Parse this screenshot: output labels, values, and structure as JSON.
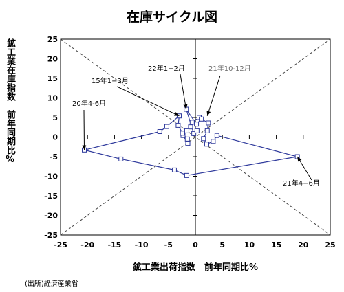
{
  "chart_data": {
    "type": "scatter",
    "title": "在庫サイクル図",
    "xlabel": "鉱工業出荷指数　前年同期比%",
    "ylabel": "鉱工業在庫指数　前年同期比%",
    "xlim": [
      -25,
      25
    ],
    "ylim": [
      -25,
      25
    ],
    "x_ticks": [
      "-25",
      "-20",
      "-15",
      "-10",
      "-5",
      "0",
      "5",
      "10",
      "15",
      "20",
      "25"
    ],
    "y_ticks": [
      "25",
      "20",
      "15",
      "10",
      "5",
      "0",
      "-5",
      "-10",
      "-15",
      "-20",
      "-25"
    ],
    "grid": false,
    "legend": "none",
    "diagonal_guides": true,
    "series": [
      {
        "values": [
          {
            "x": 0.7,
            "y": 5.0
          },
          {
            "x": -0.6,
            "y": 3.8
          },
          {
            "x": -0.9,
            "y": 2.6
          },
          {
            "x": -1.6,
            "y": 1.6
          },
          {
            "x": -2.3,
            "y": 0.4
          },
          {
            "x": -1.4,
            "y": -1.6
          },
          {
            "x": -1.5,
            "y": -0.5
          },
          {
            "x": -2.4,
            "y": 1.0
          },
          {
            "x": -3.2,
            "y": 3.0
          },
          {
            "x": -3.0,
            "y": 5.4
          },
          {
            "x": -5.3,
            "y": 2.7
          },
          {
            "x": -6.6,
            "y": 1.4
          },
          {
            "x": -20.6,
            "y": -3.3
          },
          {
            "x": -13.8,
            "y": -5.6
          },
          {
            "x": -3.9,
            "y": -8.4
          },
          {
            "x": -1.6,
            "y": -9.8
          },
          {
            "x": 18.9,
            "y": -5.0
          },
          {
            "x": 4.0,
            "y": 0.4
          },
          {
            "x": 3.3,
            "y": -1.1
          },
          {
            "x": 2.1,
            "y": -1.8
          },
          {
            "x": 1.5,
            "y": -0.4
          },
          {
            "x": 2.2,
            "y": 1.6
          },
          {
            "x": 2.4,
            "y": 3.6
          },
          {
            "x": 1.1,
            "y": 4.6
          },
          {
            "x": 0.2,
            "y": 3.3
          },
          {
            "x": -1.7,
            "y": 7.1
          },
          {
            "x": -0.3,
            "y": 0.9
          },
          {
            "x": 0.3,
            "y": 1.6
          }
        ]
      }
    ],
    "annotations": [
      {
        "text": "22年1−2月",
        "x": -1.7,
        "y": 7.1
      },
      {
        "text": "21年10-12月",
        "x": 2.2,
        "y": 5.4
      },
      {
        "text": "15年1−3月",
        "x": -3.0,
        "y": 5.4
      },
      {
        "text": "20年4-6月",
        "x": -20.6,
        "y": -3.3
      },
      {
        "text": "21年4−6月",
        "x": 18.9,
        "y": -5.0
      }
    ]
  },
  "source": "(出所)経済産業省",
  "colors": {
    "series": "#2f3a9c",
    "marker_fill": "#ffffff",
    "axis": "#000000",
    "guide": "#444444",
    "annotation_gray": "#6a6a6a"
  }
}
